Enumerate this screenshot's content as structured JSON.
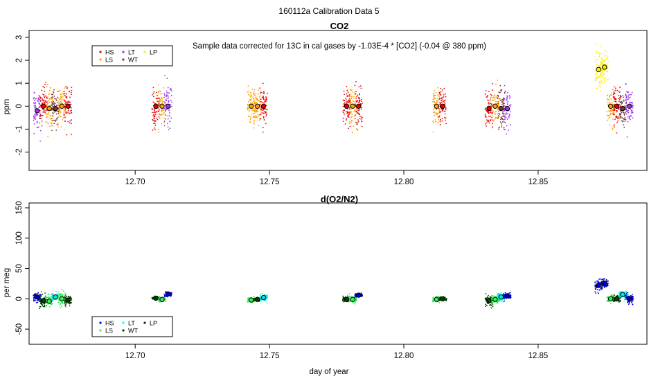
{
  "page_title": "160112a   Calibration Data 5",
  "legend_labels": [
    "HS",
    "LT",
    "LP",
    "LS",
    "WT"
  ],
  "chart_data": [
    {
      "type": "scatter",
      "title": "CO2",
      "annotation": "Sample data corrected for 13C in cal gases by -1.03E-4 * [CO2] (-0.04 @ 380 ppm)",
      "xlabel": "",
      "ylabel": "ppm",
      "xlim": [
        12.6605,
        12.8905
      ],
      "ylim": [
        -2.8,
        3.3
      ],
      "xticks": [
        12.7,
        12.75,
        12.8,
        12.85
      ],
      "xtick_labels": [
        "12.70",
        "12.75",
        "12.80",
        "12.85"
      ],
      "yticks": [
        -2,
        -1,
        0,
        1,
        2,
        3
      ],
      "ytick_labels": [
        "-2",
        "-1",
        "0",
        "1",
        "2",
        "3"
      ],
      "legend_placement": "top-left",
      "legend_order": [
        "HS",
        "LT",
        "LP",
        "LS",
        "WT"
      ],
      "legend_colors": {
        "HS": "#ee0000",
        "LT": "#9933ee",
        "LP": "#ffee00",
        "LS": "#ffa000",
        "WT": "#7a3535"
      },
      "series_colors": {
        "HS": "#ee0000",
        "LS": "#ffa000",
        "LT": "#9933ee",
        "WT": "#7a3535",
        "LP": "#ffee00"
      },
      "clusters": [
        {
          "series": "LT",
          "x": 12.6635,
          "mean": -0.2,
          "sd": 0.6
        },
        {
          "series": "HS",
          "x": 12.6658,
          "mean": 0.0,
          "sd": 0.6
        },
        {
          "series": "LS",
          "x": 12.668,
          "mean": -0.1,
          "sd": 0.7
        },
        {
          "series": "WT",
          "x": 12.6703,
          "mean": -0.1,
          "sd": 0.6
        },
        {
          "series": "LS",
          "x": 12.6727,
          "mean": 0.0,
          "sd": 0.6
        },
        {
          "series": "HS",
          "x": 12.675,
          "mean": 0.0,
          "sd": 0.6
        },
        {
          "series": "HS",
          "x": 12.7077,
          "mean": 0.0,
          "sd": 0.6
        },
        {
          "series": "LS",
          "x": 12.71,
          "mean": 0.0,
          "sd": 0.6
        },
        {
          "series": "LT",
          "x": 12.7122,
          "mean": 0.0,
          "sd": 0.6
        },
        {
          "series": "LS",
          "x": 12.7432,
          "mean": 0.0,
          "sd": 0.6
        },
        {
          "series": "LS",
          "x": 12.7455,
          "mean": 0.0,
          "sd": 0.5
        },
        {
          "series": "HS",
          "x": 12.7478,
          "mean": 0.0,
          "sd": 0.6
        },
        {
          "series": "HS",
          "x": 12.7787,
          "mean": 0.0,
          "sd": 0.6
        },
        {
          "series": "LS",
          "x": 12.781,
          "mean": 0.0,
          "sd": 0.6
        },
        {
          "series": "HS",
          "x": 12.7832,
          "mean": 0.0,
          "sd": 0.6
        },
        {
          "series": "LS",
          "x": 12.8122,
          "mean": 0.0,
          "sd": 0.6
        },
        {
          "series": "HS",
          "x": 12.8145,
          "mean": 0.0,
          "sd": 0.5
        },
        {
          "series": "HS",
          "x": 12.8317,
          "mean": -0.1,
          "sd": 0.6
        },
        {
          "series": "LS",
          "x": 12.834,
          "mean": 0.0,
          "sd": 0.6
        },
        {
          "series": "WT",
          "x": 12.8362,
          "mean": -0.1,
          "sd": 0.6
        },
        {
          "series": "LT",
          "x": 12.8385,
          "mean": -0.1,
          "sd": 0.6
        },
        {
          "series": "LP",
          "x": 12.8725,
          "mean": 1.6,
          "sd": 0.55
        },
        {
          "series": "LP",
          "x": 12.8747,
          "mean": 1.7,
          "sd": 0.5
        },
        {
          "series": "LS",
          "x": 12.877,
          "mean": 0.0,
          "sd": 0.6
        },
        {
          "series": "HS",
          "x": 12.8793,
          "mean": 0.0,
          "sd": 0.6
        },
        {
          "series": "WT",
          "x": 12.8815,
          "mean": -0.1,
          "sd": 0.6
        },
        {
          "series": "LT",
          "x": 12.884,
          "mean": 0.0,
          "sd": 0.6
        }
      ]
    },
    {
      "type": "scatter",
      "title": "d(O2/N2)",
      "xlabel": "day of year",
      "ylabel": "per meg",
      "xlim": [
        12.6605,
        12.8905
      ],
      "ylim": [
        -75,
        158
      ],
      "xticks": [
        12.7,
        12.75,
        12.8,
        12.85
      ],
      "xtick_labels": [
        "12.70",
        "12.75",
        "12.80",
        "12.85"
      ],
      "yticks": [
        -50,
        0,
        50,
        100,
        150
      ],
      "ytick_labels": [
        "-50",
        "0",
        "50",
        "100",
        "150"
      ],
      "legend_placement": "bottom-left",
      "legend_order": [
        "HS",
        "LT",
        "LP",
        "LS",
        "WT"
      ],
      "legend_colors": {
        "HS": "#0000ff",
        "LT": "#00ffff",
        "LP": "#003300",
        "LS": "#33ee55",
        "WT": "#003300"
      },
      "series_colors": {
        "HS": "#0000cc",
        "LS": "#33ee55",
        "LT": "#00e5e5",
        "WT": "#004400",
        "LP": "#000099"
      },
      "clusters": [
        {
          "series": "HS",
          "x": 12.6635,
          "mean": 3,
          "sd": 5
        },
        {
          "series": "WT",
          "x": 12.6658,
          "mean": -3,
          "sd": 8
        },
        {
          "series": "LS",
          "x": 12.668,
          "mean": -4,
          "sd": 6
        },
        {
          "series": "LT",
          "x": 12.6703,
          "mean": 3,
          "sd": 4
        },
        {
          "series": "LS",
          "x": 12.6727,
          "mean": 0,
          "sd": 8
        },
        {
          "series": "WT",
          "x": 12.675,
          "mean": -2,
          "sd": 6
        },
        {
          "series": "WT",
          "x": 12.7077,
          "mean": 1,
          "sd": 2
        },
        {
          "series": "LS",
          "x": 12.71,
          "mean": -1,
          "sd": 3
        },
        {
          "series": "HS",
          "x": 12.7122,
          "mean": 8,
          "sd": 3
        },
        {
          "series": "LS",
          "x": 12.7432,
          "mean": -2,
          "sd": 3
        },
        {
          "series": "WT",
          "x": 12.7455,
          "mean": -1,
          "sd": 2
        },
        {
          "series": "LT",
          "x": 12.7478,
          "mean": 2,
          "sd": 4
        },
        {
          "series": "WT",
          "x": 12.7787,
          "mean": -1,
          "sd": 3
        },
        {
          "series": "LS",
          "x": 12.781,
          "mean": -1,
          "sd": 4
        },
        {
          "series": "HS",
          "x": 12.7832,
          "mean": 6,
          "sd": 2
        },
        {
          "series": "LS",
          "x": 12.8122,
          "mean": -1,
          "sd": 3
        },
        {
          "series": "WT",
          "x": 12.8145,
          "mean": 0,
          "sd": 2
        },
        {
          "series": "WT",
          "x": 12.8317,
          "mean": -3,
          "sd": 7
        },
        {
          "series": "LS",
          "x": 12.834,
          "mean": -1,
          "sd": 4
        },
        {
          "series": "LT",
          "x": 12.8362,
          "mean": 3,
          "sd": 5
        },
        {
          "series": "HS",
          "x": 12.8385,
          "mean": 5,
          "sd": 4
        },
        {
          "series": "HS",
          "x": 12.8725,
          "mean": 22,
          "sd": 7
        },
        {
          "series": "HS",
          "x": 12.8747,
          "mean": 26,
          "sd": 5
        },
        {
          "series": "LS",
          "x": 12.877,
          "mean": 0,
          "sd": 5
        },
        {
          "series": "WT",
          "x": 12.8793,
          "mean": 0,
          "sd": 4
        },
        {
          "series": "LT",
          "x": 12.8815,
          "mean": 7,
          "sd": 4
        },
        {
          "series": "HS",
          "x": 12.884,
          "mean": 0,
          "sd": 6
        }
      ]
    }
  ]
}
